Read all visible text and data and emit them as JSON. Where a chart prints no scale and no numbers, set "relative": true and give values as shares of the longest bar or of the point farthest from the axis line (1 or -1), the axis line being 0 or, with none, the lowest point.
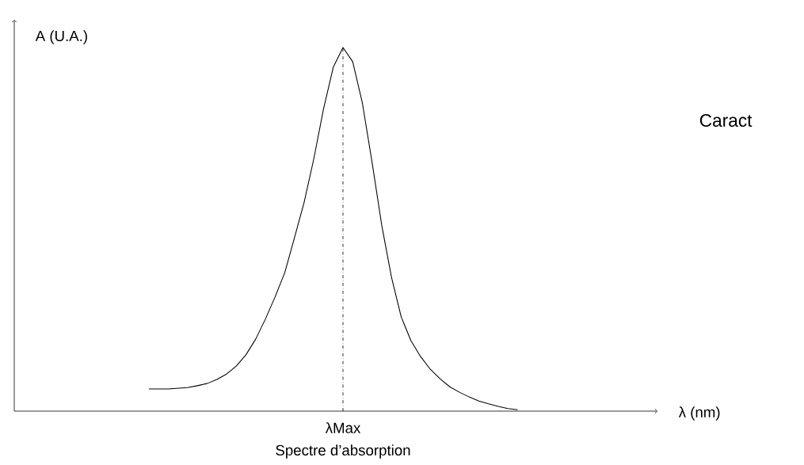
{
  "chart_data": {
    "type": "line",
    "relative": true,
    "ylabel": "A (U.A.)",
    "color": "#000000",
    "marker": "none",
    "line_style": "solid",
    "categories": [
      null,
      null,
      null,
      null,
      null,
      null,
      null,
      null,
      null,
      null,
      null,
      null,
      null,
      null,
      null,
      null,
      null,
      null,
      null,
      null,
      null,
      null,
      null,
      null,
      null,
      null,
      null,
      null,
      null,
      null,
      null,
      null,
      null,
      null,
      null,
      null,
      null,
      null,
      null
    ],
    "values": [
      0.061,
      0.061,
      0.061,
      0.063,
      0.065,
      0.07,
      0.076,
      0.087,
      0.102,
      0.124,
      0.155,
      0.198,
      0.253,
      0.314,
      0.381,
      0.477,
      0.575,
      0.695,
      0.832,
      0.946,
      1,
      0.961,
      0.847,
      0.684,
      0.51,
      0.368,
      0.259,
      0.194,
      0.15,
      0.115,
      0.089,
      0.067,
      0.052,
      0.039,
      0.028,
      0.02,
      0.013,
      0.007,
      0.004
    ],
    "annotations": [
      "λMax",
      "Spectre d’absorption",
      "Caract",
      "λ (nm)"
    ]
  }
}
